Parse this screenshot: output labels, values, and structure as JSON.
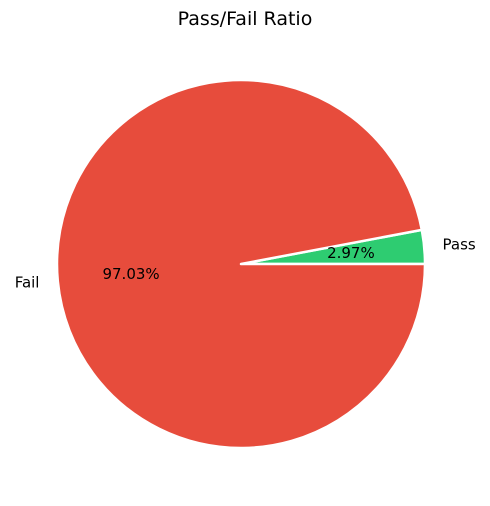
{
  "chart_data": {
    "type": "pie",
    "title": "Pass/Fail Ratio",
    "slices": [
      {
        "label": "Pass",
        "value": 2.97,
        "pct_label": "2.97%",
        "color": "#2ecc71"
      },
      {
        "label": "Fail",
        "value": 97.03,
        "pct_label": "97.03%",
        "color": "#e74c3c"
      }
    ],
    "start_angle_deg": 0,
    "direction": "counterclockwise",
    "wedge_edge_color": "#ffffff"
  }
}
